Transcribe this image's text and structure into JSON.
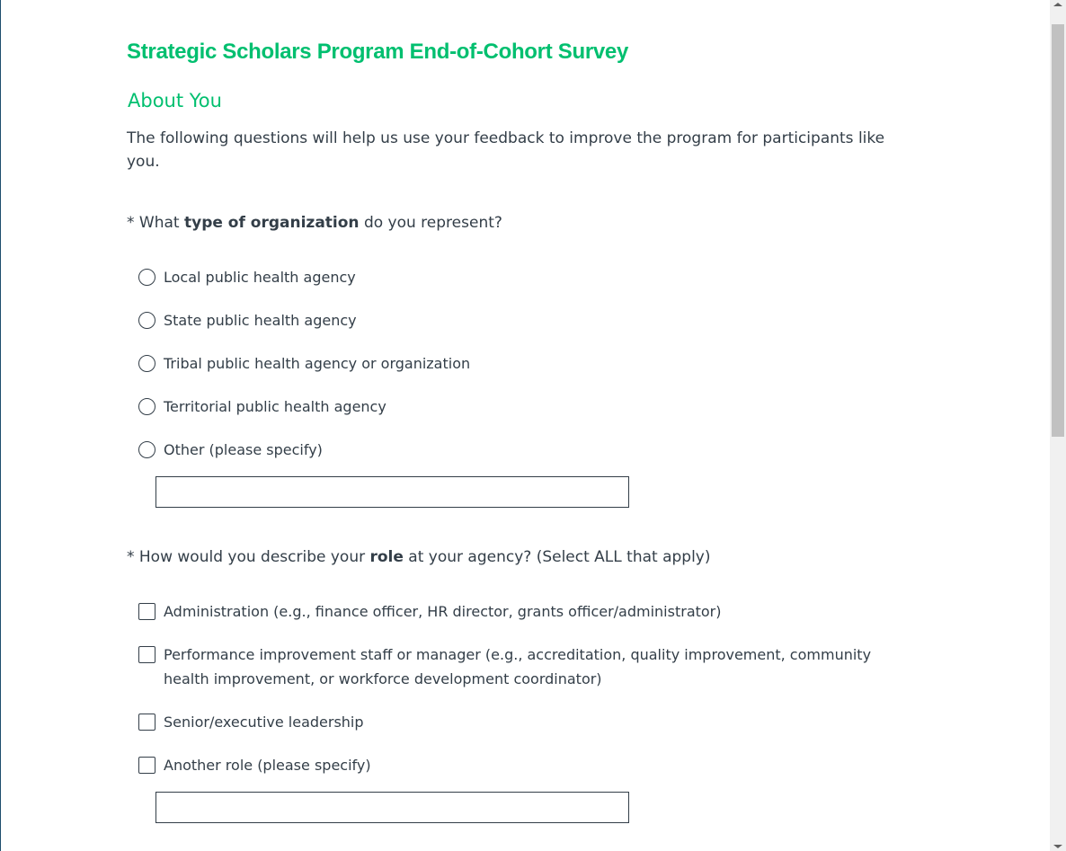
{
  "survey": {
    "title": "Strategic Scholars Program End-of-Cohort Survey",
    "section": "About You",
    "intro": "The following questions will help us use your feedback to improve the program for participants like you."
  },
  "q1": {
    "required": "* What ",
    "bold": "type of organization",
    "rest": " do you represent?",
    "options": [
      "Local public health agency",
      "State public health agency",
      "Tribal public health agency or organization",
      "Territorial public health agency",
      "Other (please specify)"
    ],
    "other_value": ""
  },
  "q2": {
    "required": "* How would you describe your ",
    "bold": "role",
    "rest": " at your agency? (Select ALL that apply)",
    "options": [
      "Administration (e.g., finance officer, HR director, grants officer/administrator)",
      "Performance improvement staff or manager (e.g., accreditation, quality improvement, community health improvement, or workforce development coordinator)",
      "Senior/executive leadership",
      "Another role (please specify)"
    ],
    "other_value": ""
  },
  "colors": {
    "accent": "#00bf6f",
    "text": "#333e48"
  }
}
